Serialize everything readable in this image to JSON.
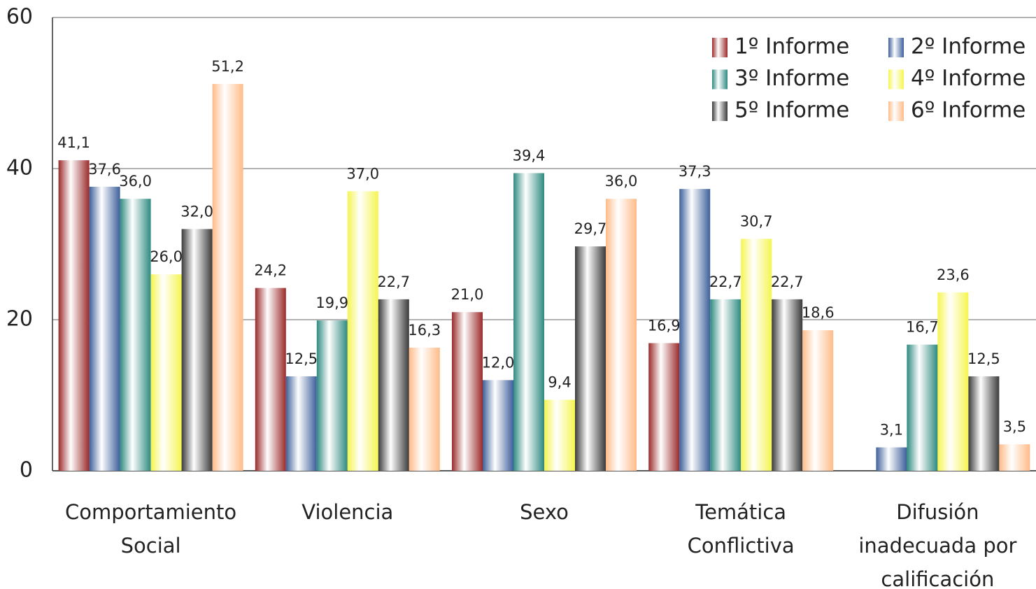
{
  "chart_data": {
    "type": "bar",
    "categories": [
      "Comportamiento Social",
      "Violencia",
      "Sexo",
      "Temática Conflictiva",
      "Difusión inadecuada por calificación"
    ],
    "series": [
      {
        "name": "1º Informe",
        "color": "#9b2a2a",
        "values": [
          41.1,
          24.2,
          21.0,
          16.9,
          null
        ],
        "value_labels": [
          "41,1",
          "24,2",
          "21,0",
          "16,9",
          null
        ]
      },
      {
        "name": "2º Informe",
        "color": "#3d5f9a",
        "values": [
          37.6,
          12.5,
          12.0,
          37.3,
          3.1
        ],
        "value_labels": [
          "37,6",
          "12,5",
          "12,0",
          "37,3",
          "3,1"
        ]
      },
      {
        "name": "3º Informe",
        "color": "#2e8a80",
        "values": [
          36.0,
          19.9,
          39.4,
          22.7,
          16.7
        ],
        "value_labels": [
          "36,0",
          "19,9",
          "39,4",
          "22,7",
          "16,7"
        ]
      },
      {
        "name": "4º Informe",
        "color": "#f5f550",
        "values": [
          26.0,
          37.0,
          9.4,
          30.7,
          23.6
        ],
        "value_labels": [
          "26,0",
          "37,0",
          "9,4",
          "30,7",
          "23,6"
        ]
      },
      {
        "name": "5º Informe",
        "color": "#3a3a3a",
        "values": [
          32.0,
          22.7,
          29.7,
          22.7,
          12.5
        ],
        "value_labels": [
          "32,0",
          "22,7",
          "29,7",
          "22,7",
          "12,5"
        ]
      },
      {
        "name": "6º Informe",
        "color": "#ffbb88",
        "values": [
          51.2,
          16.3,
          36.0,
          18.6,
          3.5
        ],
        "value_labels": [
          "51,2",
          "16,3",
          "36,0",
          "18,6",
          "3,5"
        ]
      }
    ],
    "ylim": [
      0,
      60
    ],
    "yticks": [
      0,
      20,
      40,
      60
    ],
    "grid": true,
    "legend": "top-right"
  }
}
